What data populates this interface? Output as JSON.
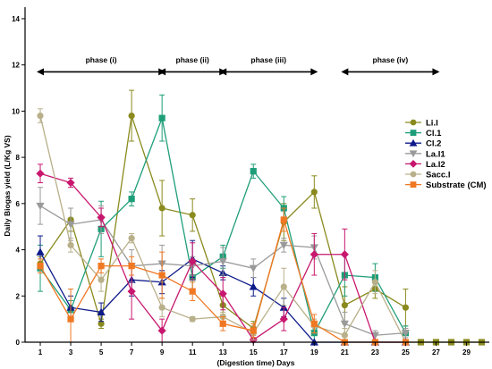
{
  "chart_data": {
    "type": "line",
    "title": "",
    "xlabel": "(Digestion time) Days",
    "ylabel": "Daily Biogas yield (L/Kg VS)",
    "x_ticks": [
      1,
      3,
      5,
      7,
      9,
      11,
      13,
      15,
      17,
      19,
      21,
      23,
      25,
      27,
      29
    ],
    "y_ticks": [
      0,
      2,
      4,
      6,
      8,
      10,
      12,
      14
    ],
    "xlim": [
      0,
      30.5
    ],
    "ylim": [
      0,
      14.5
    ],
    "legend_position": "right",
    "phases": [
      {
        "label": "phase (i)",
        "start": 1,
        "end": 9
      },
      {
        "label": "phase (ii)",
        "start": 9,
        "end": 13
      },
      {
        "label": "phase (iii)",
        "start": 13,
        "end": 19
      },
      {
        "label": "phase (iv)",
        "start": 21,
        "end": 27
      }
    ],
    "x": [
      1,
      3,
      5,
      7,
      9,
      11,
      13,
      15,
      17,
      19,
      21,
      23,
      25
    ],
    "x_tail": [
      26,
      27,
      28,
      29,
      30
    ],
    "tail_value": 0,
    "tail_color": "#8a8a1e",
    "series": [
      {
        "name": "Li.I",
        "color": "#8a8a1e",
        "marker": "circle",
        "values": [
          3.4,
          5.3,
          0.8,
          9.8,
          5.8,
          5.5,
          1.6,
          0.6,
          5.2,
          6.5,
          1.6,
          2.3,
          1.5
        ],
        "errors": [
          0.3,
          0.5,
          0.2,
          1.1,
          1.2,
          0.7,
          0.4,
          0.3,
          0.8,
          0.7,
          0.8,
          0.4,
          0.8
        ]
      },
      {
        "name": "Cl.1",
        "color": "#1e9e78",
        "marker": "square",
        "values": [
          3.2,
          1.4,
          4.9,
          6.2,
          9.7,
          2.8,
          3.7,
          7.4,
          5.8,
          0.4,
          2.9,
          2.8,
          0.4
        ],
        "errors": [
          1.0,
          0.4,
          1.2,
          0.3,
          1.0,
          0.6,
          0.5,
          0.3,
          0.5,
          0.4,
          0.9,
          0.6,
          0.3
        ]
      },
      {
        "name": "Cl.2",
        "color": "#0d1a8a",
        "marker": "triangle",
        "values": [
          3.9,
          1.5,
          1.3,
          2.7,
          2.6,
          3.6,
          3.0,
          2.4,
          1.5,
          0.0,
          0.0,
          0.0,
          0.0
        ],
        "errors": [
          0.7,
          0.5,
          0.4,
          0.7,
          0.5,
          0.8,
          0.3,
          0.4,
          0.4,
          0.0,
          0.0,
          0.0,
          0.0
        ]
      },
      {
        "name": "La.I1",
        "color": "#9a9a9a",
        "marker": "triangle-down",
        "values": [
          5.9,
          5.1,
          5.3,
          3.3,
          3.4,
          3.3,
          3.5,
          3.2,
          4.2,
          4.1,
          0.8,
          0.3,
          0.4
        ],
        "errors": [
          0.8,
          0.7,
          0.6,
          0.7,
          0.8,
          0.4,
          0.6,
          0.4,
          0.3,
          0.5,
          0.5,
          0.2,
          0.2
        ]
      },
      {
        "name": "La.I2",
        "color": "#c8176e",
        "marker": "diamond",
        "values": [
          7.3,
          6.9,
          5.4,
          2.2,
          0.5,
          3.5,
          2.1,
          0.1,
          1.0,
          3.8,
          3.8,
          0.0,
          0.0
        ],
        "errors": [
          0.4,
          0.2,
          0.4,
          1.2,
          0.5,
          0.8,
          0.7,
          0.1,
          0.5,
          0.9,
          1.1,
          0.0,
          0.0
        ]
      },
      {
        "name": "Sacc.I",
        "color": "#b8b08a",
        "marker": "circle",
        "values": [
          9.8,
          4.2,
          2.7,
          4.5,
          1.5,
          1.0,
          1.1,
          0.4,
          2.4,
          0.7,
          0.3,
          2.6,
          0.0
        ],
        "errors": [
          0.3,
          0.3,
          0.5,
          0.2,
          0.4,
          0.1,
          0.2,
          0.3,
          0.8,
          0.3,
          0.3,
          0.5,
          0.0
        ]
      },
      {
        "name": "Substrate (CM)",
        "color": "#f07823",
        "marker": "square",
        "values": [
          3.3,
          1.0,
          3.3,
          3.3,
          2.9,
          2.2,
          0.8,
          0.5,
          5.3,
          0.8,
          0.0,
          0.0,
          0.0
        ],
        "errors": [
          0.3,
          1.3,
          0.3,
          0.4,
          1.0,
          0.4,
          0.3,
          0.3,
          0.5,
          0.4,
          0.0,
          0.0,
          0.0
        ]
      }
    ]
  }
}
